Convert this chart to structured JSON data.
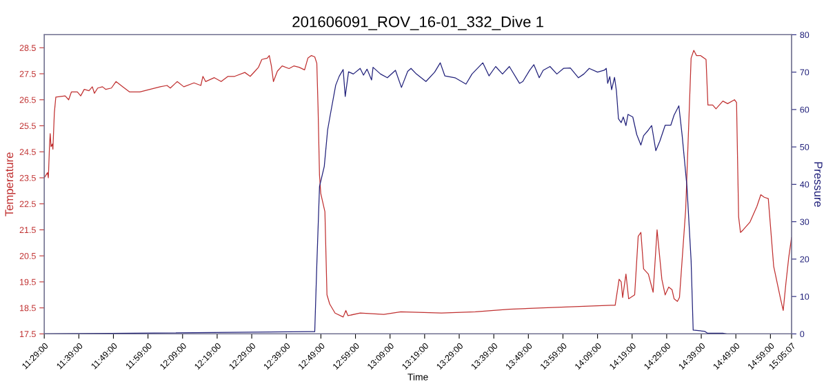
{
  "chart_data": {
    "type": "line",
    "title": "201606091_ROV_16-01_332_Dive 1",
    "xlabel": "Time",
    "ylabel": "Temperature",
    "y2label": "Pressure",
    "xlim": [
      11.48333,
      15.08528
    ],
    "xticks": [
      {
        "value": 11.48333,
        "label": "11:29:00"
      },
      {
        "value": 11.65,
        "label": "11:39:00"
      },
      {
        "value": 11.81667,
        "label": "11:49:00"
      },
      {
        "value": 11.98333,
        "label": "11:59:00"
      },
      {
        "value": 12.15,
        "label": "12:09:00"
      },
      {
        "value": 12.31667,
        "label": "12:19:00"
      },
      {
        "value": 12.48333,
        "label": "12:29:00"
      },
      {
        "value": 12.65,
        "label": "12:39:00"
      },
      {
        "value": 12.81667,
        "label": "12:49:00"
      },
      {
        "value": 12.98333,
        "label": "12:59:00"
      },
      {
        "value": 13.15,
        "label": "13:09:00"
      },
      {
        "value": 13.31667,
        "label": "13:19:00"
      },
      {
        "value": 13.48333,
        "label": "13:29:00"
      },
      {
        "value": 13.65,
        "label": "13:39:00"
      },
      {
        "value": 13.81667,
        "label": "13:49:00"
      },
      {
        "value": 13.98333,
        "label": "13:59:00"
      },
      {
        "value": 14.15,
        "label": "14:09:00"
      },
      {
        "value": 14.31667,
        "label": "14:19:00"
      },
      {
        "value": 14.48333,
        "label": "14:29:00"
      },
      {
        "value": 14.65,
        "label": "14:39:00"
      },
      {
        "value": 14.81667,
        "label": "14:49:00"
      },
      {
        "value": 14.98333,
        "label": "14:59:00"
      },
      {
        "value": 15.08528,
        "label": "15:05:07"
      }
    ],
    "ylim": [
      17.5,
      29.0
    ],
    "yticks": [
      17.5,
      18.5,
      19.5,
      20.5,
      21.5,
      22.5,
      23.5,
      24.5,
      25.5,
      26.5,
      27.5,
      28.5
    ],
    "y2lim": [
      0,
      80
    ],
    "y2ticks": [
      0,
      10,
      20,
      30,
      40,
      50,
      60,
      70,
      80
    ],
    "series": [
      {
        "color": "#c03030",
        "x": [
          11.4834,
          11.499,
          11.503,
          11.509,
          11.512,
          11.516,
          11.522,
          11.525,
          11.532,
          11.539,
          11.584,
          11.601,
          11.614,
          11.643,
          11.659,
          11.676,
          11.699,
          11.715,
          11.725,
          11.741,
          11.764,
          11.78,
          11.807,
          11.829,
          11.862,
          11.895,
          11.944,
          11.993,
          12.042,
          12.075,
          12.091,
          12.124,
          12.156,
          12.205,
          12.238,
          12.248,
          12.261,
          12.303,
          12.336,
          12.369,
          12.401,
          12.45,
          12.476,
          12.499,
          12.516,
          12.532,
          12.558,
          12.568,
          12.578,
          12.588,
          12.607,
          12.63,
          12.663,
          12.686,
          12.712,
          12.738,
          12.754,
          12.771,
          12.787,
          12.797,
          12.803,
          12.81,
          12.816,
          12.836,
          12.846,
          12.859,
          12.885,
          12.924,
          12.937,
          12.947,
          13.006,
          13.12,
          13.202,
          13.398,
          13.561,
          13.725,
          13.888,
          14.215,
          14.235,
          14.254,
          14.264,
          14.271,
          14.287,
          14.3,
          14.329,
          14.346,
          14.359,
          14.372,
          14.395,
          14.418,
          14.437,
          14.46,
          14.476,
          14.493,
          14.509,
          14.519,
          14.535,
          14.545,
          14.575,
          14.601,
          14.614,
          14.627,
          14.646,
          14.673,
          14.682,
          14.705,
          14.721,
          14.754,
          14.777,
          14.81,
          14.82,
          14.83,
          14.839,
          14.852,
          14.885,
          14.918,
          14.937,
          14.954,
          14.973,
          14.999,
          15.032,
          15.045,
          15.058,
          15.071,
          15.085
        ],
        "values": [
          23.5,
          23.7,
          23.5,
          24.8,
          25.2,
          24.7,
          24.8,
          24.6,
          26.0,
          26.6,
          26.65,
          26.5,
          26.8,
          26.8,
          26.65,
          26.9,
          26.85,
          27.0,
          26.75,
          26.95,
          27.0,
          26.9,
          26.95,
          27.2,
          27.0,
          26.8,
          26.8,
          26.9,
          27.0,
          27.05,
          26.95,
          27.2,
          27.0,
          27.15,
          27.05,
          27.4,
          27.2,
          27.35,
          27.2,
          27.4,
          27.4,
          27.55,
          27.4,
          27.6,
          27.75,
          28.05,
          28.1,
          28.2,
          27.8,
          27.2,
          27.6,
          27.8,
          27.7,
          27.8,
          27.75,
          27.65,
          28.1,
          28.2,
          28.15,
          27.9,
          26.2,
          23.6,
          22.9,
          22.2,
          19.0,
          18.65,
          18.3,
          18.15,
          18.4,
          18.2,
          18.3,
          18.25,
          18.35,
          18.3,
          18.35,
          18.45,
          18.5,
          18.6,
          18.6,
          19.6,
          19.5,
          18.9,
          19.8,
          18.85,
          19.0,
          21.25,
          21.4,
          20.0,
          19.8,
          19.1,
          21.5,
          19.6,
          19.0,
          19.3,
          19.2,
          18.85,
          18.75,
          18.9,
          22.3,
          28.1,
          28.4,
          28.2,
          28.2,
          28.05,
          26.3,
          26.3,
          26.15,
          26.45,
          26.35,
          26.5,
          26.4,
          22.0,
          21.4,
          21.5,
          21.8,
          22.4,
          22.85,
          22.75,
          22.7,
          20.1,
          18.85,
          18.4,
          19.45,
          20.4,
          21.2
        ]
      },
      {
        "color": "#20207a",
        "axis": "y2",
        "x": [
          11.4834,
          12.754,
          12.787,
          12.797,
          12.81,
          12.833,
          12.849,
          12.862,
          12.888,
          12.905,
          12.924,
          12.934,
          12.95,
          12.973,
          13.006,
          13.022,
          13.039,
          13.061,
          13.068,
          13.104,
          13.137,
          13.176,
          13.205,
          13.235,
          13.251,
          13.277,
          13.323,
          13.365,
          13.392,
          13.414,
          13.463,
          13.516,
          13.545,
          13.597,
          13.627,
          13.659,
          13.692,
          13.725,
          13.774,
          13.79,
          13.823,
          13.843,
          13.869,
          13.888,
          13.921,
          13.954,
          13.986,
          14.019,
          14.058,
          14.084,
          14.11,
          14.15,
          14.182,
          14.192,
          14.199,
          14.209,
          14.218,
          14.232,
          14.241,
          14.251,
          14.264,
          14.274,
          14.287,
          14.297,
          14.32,
          14.339,
          14.359,
          14.372,
          14.395,
          14.411,
          14.431,
          14.45,
          14.476,
          14.503,
          14.519,
          14.542,
          14.558,
          14.581,
          14.601,
          14.611,
          14.666,
          14.679,
          14.754,
          14.771
        ],
        "values": [
          0,
          0.6,
          0.6,
          18.4,
          39.4,
          44.8,
          54.5,
          58.6,
          66.5,
          68.9,
          70.7,
          63.5,
          70.1,
          69.5,
          71.0,
          69.2,
          70.8,
          67.9,
          71.3,
          69.5,
          68.5,
          70.5,
          65.9,
          70.2,
          71.0,
          69.5,
          67.5,
          70.0,
          72.5,
          69.0,
          68.5,
          66.8,
          69.5,
          72.5,
          69.0,
          71.5,
          69.5,
          71.5,
          67.0,
          67.5,
          70.5,
          72.0,
          68.5,
          70.5,
          71.5,
          69.5,
          71.0,
          71.1,
          68.5,
          69.5,
          71.0,
          70.0,
          70.5,
          71.0,
          67.0,
          68.8,
          65.3,
          68.6,
          65.0,
          57.5,
          56.5,
          58.0,
          55.7,
          58.7,
          58.0,
          53.3,
          50.5,
          53.0,
          54.5,
          55.7,
          49.0,
          51.5,
          55.8,
          55.8,
          58.5,
          61.0,
          53.0,
          39.4,
          19.6,
          1.0,
          0.7,
          0.2,
          0.2,
          0
        ]
      }
    ]
  }
}
